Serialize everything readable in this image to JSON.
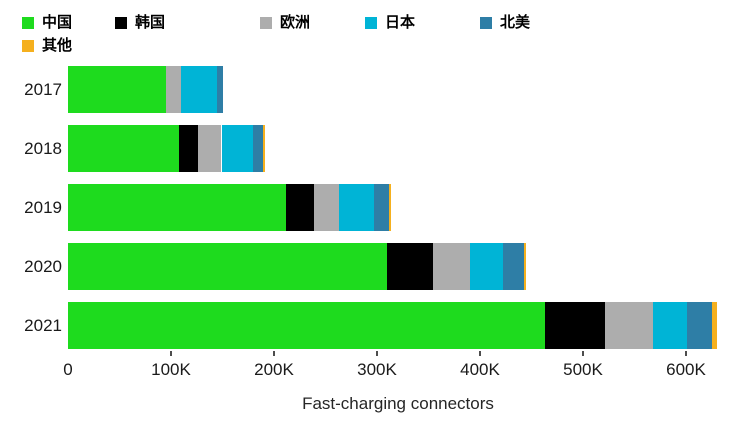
{
  "chart_data": {
    "type": "bar",
    "orientation": "horizontal",
    "stacked": true,
    "title": "",
    "xlabel": "Fast-charging connectors",
    "unit": "thousands of connectors",
    "categories": [
      "2017",
      "2018",
      "2019",
      "2020",
      "2021"
    ],
    "series": [
      {
        "key": "china",
        "name": "中国",
        "color": "#1EDB1E",
        "values": [
          95,
          108,
          212,
          310,
          463
        ]
      },
      {
        "key": "south-korea",
        "name": "韩国",
        "color": "#000000",
        "values": [
          0,
          18,
          27,
          44,
          58
        ]
      },
      {
        "key": "europe",
        "name": "欧洲",
        "color": "#ADADAD",
        "values": [
          15,
          23,
          24,
          36,
          47
        ]
      },
      {
        "key": "japan",
        "name": "日本",
        "color": "#00B4D6",
        "values": [
          35,
          31,
          34,
          32,
          33
        ]
      },
      {
        "key": "north-america",
        "name": "北美",
        "color": "#2E7EA6",
        "values": [
          5,
          9,
          15,
          21,
          24
        ]
      },
      {
        "key": "other",
        "name": "其他",
        "color": "#F5B01E",
        "values": [
          0,
          2,
          2,
          2,
          5
        ]
      }
    ],
    "totals": [
      150,
      191,
      314,
      445,
      630
    ],
    "x_ticks": [
      {
        "value": 0,
        "label": "0"
      },
      {
        "value": 100,
        "label": "100K"
      },
      {
        "value": 200,
        "label": "200K"
      },
      {
        "value": 300,
        "label": "300K"
      },
      {
        "value": 400,
        "label": "400K"
      },
      {
        "value": 500,
        "label": "500K"
      },
      {
        "value": 600,
        "label": "600K"
      }
    ],
    "xlim": [
      0,
      650
    ],
    "grid": false,
    "legend_position": "top-left"
  }
}
